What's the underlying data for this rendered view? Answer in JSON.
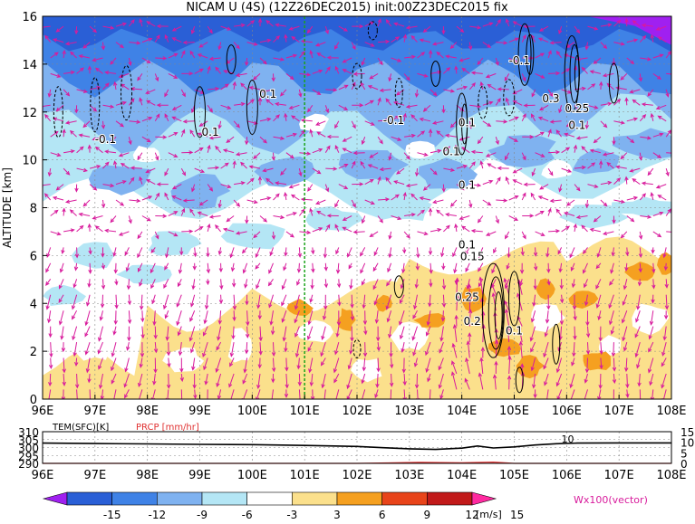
{
  "title": "NICAM U (4S) (12Z26DEC2015) init:00Z23DEC2015 fix",
  "chart_data": [
    {
      "type": "heatmap",
      "ylabel": "ALTITUDE [km]",
      "x_ticks": [
        "96E",
        "97E",
        "98E",
        "99E",
        "100E",
        "101E",
        "102E",
        "103E",
        "104E",
        "105E",
        "106E",
        "107E",
        "108E"
      ],
      "y_ticks": [
        "0",
        "2",
        "4",
        "6",
        "8",
        "10",
        "12",
        "14",
        "16"
      ],
      "xlim": [
        96,
        108
      ],
      "ylim": [
        0,
        16
      ],
      "marker_longitude": 101,
      "grid": true,
      "contour_labels": [
        {
          "text": "0.1",
          "x": 100.3,
          "y": 12.6
        },
        {
          "text": "0.1",
          "x": 99.2,
          "y": 11.0
        },
        {
          "text": "-0.1",
          "x": 97.2,
          "y": 10.7
        },
        {
          "text": "-0.1",
          "x": 102.7,
          "y": 11.5
        },
        {
          "text": "0.1",
          "x": 104.1,
          "y": 11.4
        },
        {
          "text": "0.1",
          "x": 103.8,
          "y": 10.2
        },
        {
          "text": "0.1",
          "x": 104.1,
          "y": 8.8
        },
        {
          "text": "-0.1",
          "x": 105.1,
          "y": 14.0
        },
        {
          "text": "0.3",
          "x": 105.7,
          "y": 12.4
        },
        {
          "text": "0.25",
          "x": 106.2,
          "y": 12.0
        },
        {
          "text": "0.1",
          "x": 106.2,
          "y": 11.3
        },
        {
          "text": "0.1",
          "x": 104.1,
          "y": 6.3
        },
        {
          "text": "0.15",
          "x": 104.2,
          "y": 5.8
        },
        {
          "text": "0.25",
          "x": 104.1,
          "y": 4.1
        },
        {
          "text": "0.2",
          "x": 104.2,
          "y": 3.1
        },
        {
          "text": "0.1",
          "x": 105.0,
          "y": 2.7
        }
      ],
      "field_note": "zonal wind U [m/s] shaded; Wx100 vertical velocity vectors"
    },
    {
      "type": "line",
      "series": [
        {
          "name": "TEM(SFC)[K]",
          "color": "#000000",
          "axis": "left",
          "x": [
            96,
            97,
            98,
            99,
            100,
            101,
            102,
            102.5,
            103,
            103.5,
            104,
            104.3,
            104.6,
            105,
            105.4,
            105.8,
            106.2,
            107,
            108
          ],
          "values": [
            302.8,
            302.5,
            302.3,
            302.0,
            301.8,
            301.3,
            300.7,
            299.9,
            299.2,
            298.8,
            299.6,
            301.0,
            299.7,
            300.4,
            301.6,
            302.4,
            302.8,
            302.9,
            302.9
          ]
        },
        {
          "name": "PRCP [mm/hr]",
          "color": "#e03030",
          "axis": "right",
          "x": [
            96,
            102,
            102.6,
            103.2,
            104,
            104.6,
            105,
            108
          ],
          "values": [
            0,
            0,
            0.2,
            0.5,
            0.3,
            0.6,
            0,
            0
          ]
        }
      ],
      "xlim": [
        96,
        108
      ],
      "y_left_ticks": [
        "310",
        "305",
        "300",
        "295",
        "290"
      ],
      "y_left_lim": [
        290,
        310
      ],
      "y_right_ticks": [
        "15",
        "10",
        "5",
        "0"
      ],
      "y_right_lim": [
        0,
        15
      ],
      "label": "10",
      "x_ticks": [
        "96E",
        "97E",
        "98E",
        "99E",
        "100E",
        "101E",
        "102E",
        "103E",
        "104E",
        "105E",
        "106E",
        "107E",
        "108E"
      ]
    }
  ],
  "colorbar": {
    "ticks": [
      "-15",
      "-12",
      "-9",
      "-6",
      "-3",
      "3",
      "6",
      "9",
      "12",
      "15"
    ],
    "colors": [
      "#a020f0",
      "#2a5fd6",
      "#3f82e6",
      "#7fb2f0",
      "#b4e6f5",
      "#ffffff",
      "#fbe08c",
      "#f5a020",
      "#e8441a",
      "#c11a1a",
      "#ff2aa0"
    ],
    "unit": "[m/s]",
    "vector_label": "Wx100(vector)"
  }
}
